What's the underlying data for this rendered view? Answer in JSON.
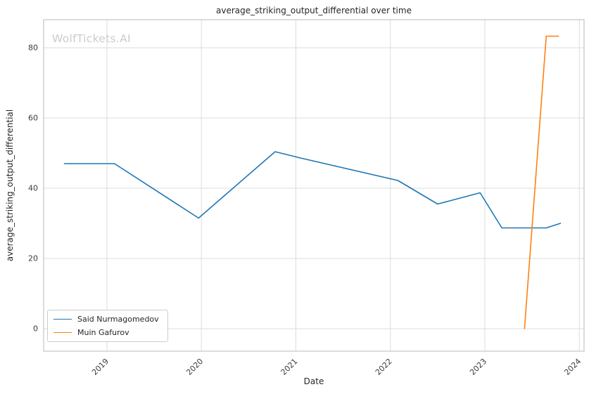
{
  "chart_data": {
    "type": "line",
    "title": "average_striking_output_differential over time",
    "xlabel": "Date",
    "ylabel": "average_striking_output_differential",
    "watermark": "WolfTickets.AI",
    "xlim": [
      2018.33,
      2024.05
    ],
    "ylim": [
      -6.4,
      88
    ],
    "xticks": [
      2019,
      2020,
      2021,
      2022,
      2023,
      2024
    ],
    "yticks": [
      0,
      20,
      40,
      60,
      80
    ],
    "grid": true,
    "legend_position": "lower left",
    "colors": {
      "grid": "#dcdcdc",
      "spine": "#c4c4c4",
      "text": "#3b3b3b",
      "background": "#ffffff",
      "watermark": "#cbcbcb"
    },
    "series": [
      {
        "name": "Said Nurmagomedov",
        "color": "#1f77b4",
        "x": [
          2018.55,
          2019.08,
          2019.97,
          2020.78,
          2021.05,
          2022.08,
          2022.5,
          2022.95,
          2023.18,
          2023.65,
          2023.8
        ],
        "y": [
          47.0,
          47.0,
          31.5,
          50.4,
          48.6,
          42.2,
          35.5,
          38.7,
          28.7,
          28.7,
          30.0
        ]
      },
      {
        "name": "Muin Gafurov",
        "color": "#ff7f0e",
        "x": [
          2023.42,
          2023.65,
          2023.78
        ],
        "y": [
          0.0,
          83.3,
          83.3
        ]
      }
    ]
  }
}
